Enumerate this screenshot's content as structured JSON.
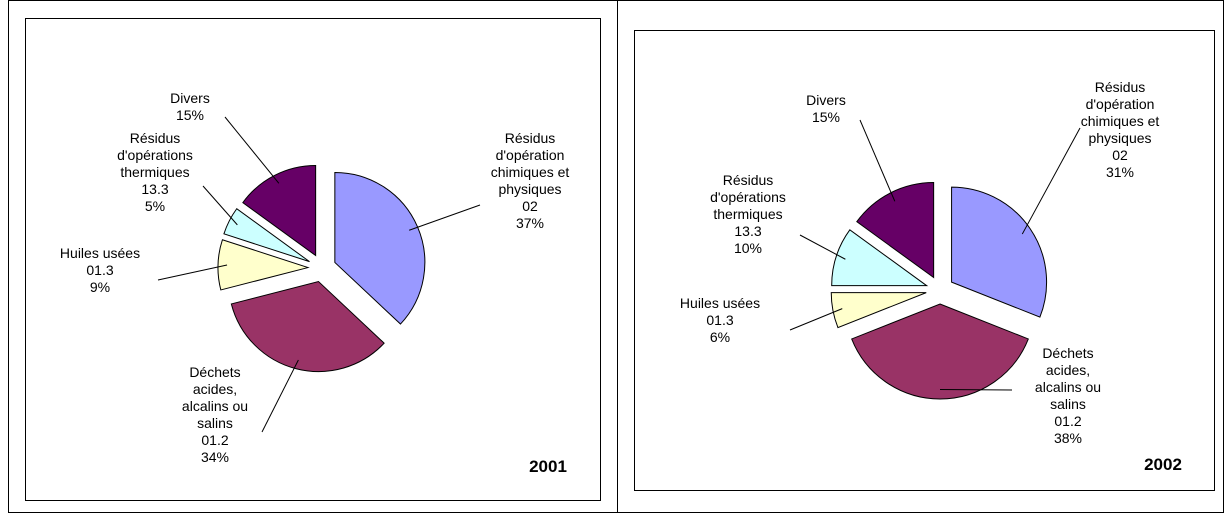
{
  "chart_data": [
    {
      "type": "pie",
      "title": "2001",
      "categories": [
        [
          "Résidus",
          "d'opération",
          "chimiques et",
          "physiques",
          "02"
        ],
        [
          "Déchets",
          "acides,",
          "alcalins ou",
          "salins",
          "01.2"
        ],
        [
          "Huiles usées",
          "01.3"
        ],
        [
          "Résidus",
          "d'opérations",
          "thermiques",
          "13.3"
        ],
        [
          "Divers"
        ]
      ],
      "values": [
        37,
        34,
        9,
        5,
        15
      ],
      "value_labels": [
        "37%",
        "34%",
        "9%",
        "5%",
        "15%"
      ],
      "colors": [
        "#9999ff",
        "#993366",
        "#ffffcc",
        "#ccffff",
        "#660066"
      ]
    },
    {
      "type": "pie",
      "title": "2002",
      "categories": [
        [
          "Résidus",
          "d'opération",
          "chimiques et",
          "physiques",
          "02"
        ],
        [
          "Déchets",
          "acides,",
          "alcalins ou",
          "salins",
          "01.2"
        ],
        [
          "Huiles usées",
          "01.3"
        ],
        [
          "Résidus",
          "d'opérations",
          "thermiques",
          "13.3"
        ],
        [
          "Divers"
        ]
      ],
      "values": [
        31,
        38,
        6,
        10,
        15
      ],
      "value_labels": [
        "31%",
        "38%",
        "6%",
        "10%",
        "15%"
      ],
      "colors": [
        "#9999ff",
        "#993366",
        "#ffffcc",
        "#ccffff",
        "#660066"
      ]
    }
  ]
}
